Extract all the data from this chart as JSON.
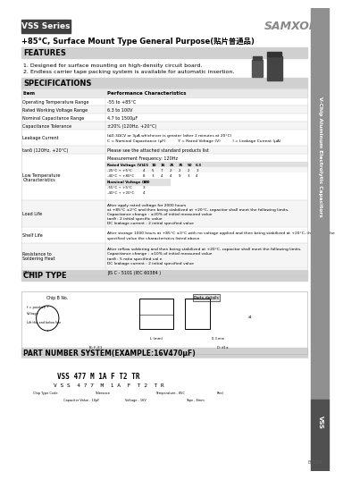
{
  "title_series": "VSS Series",
  "title_sub": "+85°C, Surface Mount Type General Purpose(贴片普通品)",
  "samxon_logo": "SAMXON®",
  "features_title": "FEATURES",
  "features": [
    "1. Designed for surface mounting on high-density circuit board.",
    "2. Endless carrier tape packing system is available for automatic insertion."
  ],
  "specs_title": "SPECIFICATIONS",
  "chip_type_title": "CHIP TYPE",
  "part_number_title": "PART NUMBER SYSTEM(EXAMPLE:16V470μF)",
  "part_number_example": "VSS 477 M 1A F T2 TR",
  "bg_color": "#ffffff",
  "header_dark_color": "#404040",
  "section_header_color": "#d0d0d0",
  "right_bar_color": "#909090",
  "right_bar_dark_color": "#505050",
  "table_alt_color": "#f5f5f5",
  "table_line_color": "#cccccc",
  "right_bar_text": "V-Chip Aluminum Electrolytic Capacitors",
  "right_bar_label": "VSS",
  "page_num": "B-109"
}
